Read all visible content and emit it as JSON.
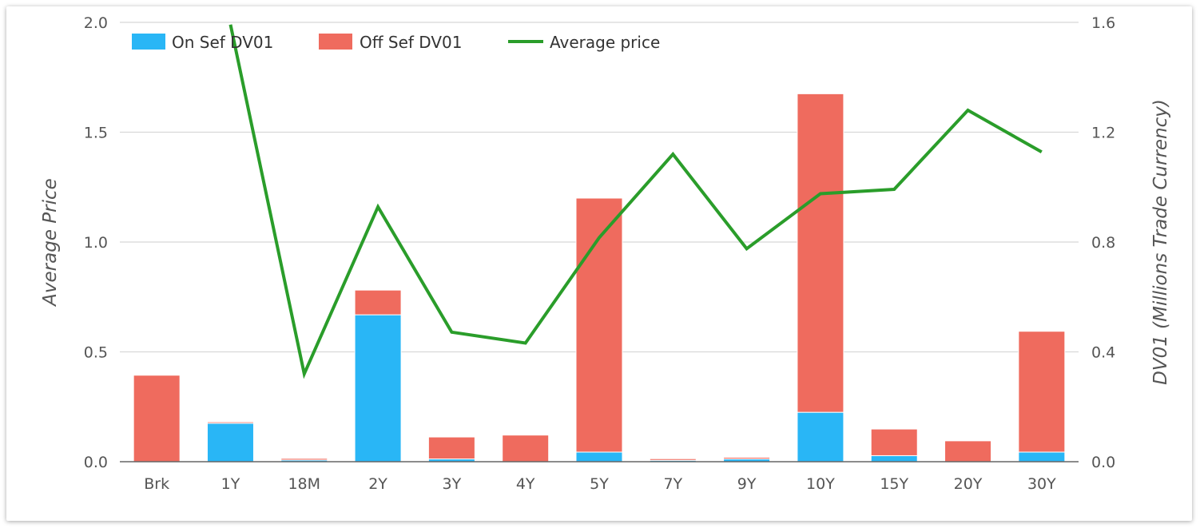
{
  "chart_data": {
    "type": "bar",
    "categories": [
      "Brk",
      "1Y",
      "18M",
      "2Y",
      "3Y",
      "4Y",
      "5Y",
      "7Y",
      "9Y",
      "10Y",
      "15Y",
      "20Y",
      "30Y"
    ],
    "series": [
      {
        "name": "On Sef DV01",
        "type": "bar",
        "stack": "dv01",
        "axis": "right",
        "color": "#29b6f6",
        "values": [
          0.0,
          0.14,
          0.006,
          0.535,
          0.01,
          0.0,
          0.035,
          0.005,
          0.01,
          0.18,
          0.022,
          0.0,
          0.035
        ]
      },
      {
        "name": "Off Sef DV01",
        "type": "bar",
        "stack": "dv01",
        "axis": "right",
        "color": "#ef6b5e",
        "values": [
          0.315,
          0.005,
          0.006,
          0.09,
          0.08,
          0.097,
          0.925,
          0.006,
          0.006,
          1.16,
          0.097,
          0.076,
          0.44
        ]
      },
      {
        "name": "Average price",
        "type": "line",
        "axis": "left",
        "color": "#2a9d2a",
        "values": [
          null,
          1.99,
          0.4,
          1.16,
          0.59,
          0.54,
          1.02,
          1.4,
          0.97,
          1.22,
          1.24,
          1.6,
          1.41
        ]
      }
    ],
    "yAxisLeft": {
      "label": "Average Price",
      "min": 0,
      "max": 2.0,
      "ticks": [
        "0.0",
        "0.5",
        "1.0",
        "1.5",
        "2.0"
      ]
    },
    "yAxisRight": {
      "label": "DV01 (Millions Trade Currency)",
      "min": 0,
      "max": 1.6,
      "ticks": [
        "0.0",
        "0.4",
        "0.8",
        "1.2",
        "1.6"
      ]
    },
    "grid": true,
    "legend": "top-left"
  }
}
